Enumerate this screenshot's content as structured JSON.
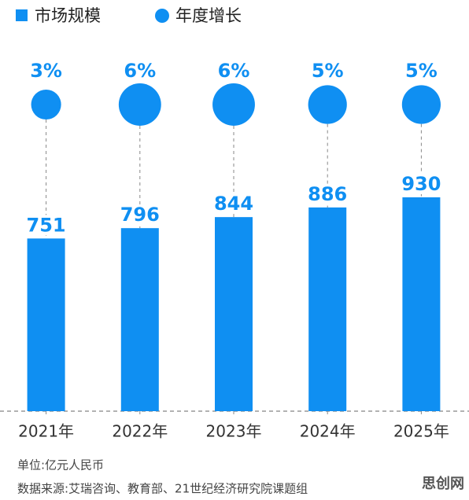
{
  "chart_data": {
    "type": "bar",
    "categories": [
      "2021年",
      "2022年",
      "2023年",
      "2024年",
      "2025年"
    ],
    "series": [
      {
        "name": "市场规模",
        "type": "bar",
        "color": "#0f8ff2",
        "values": [
          751,
          796,
          844,
          886,
          930
        ]
      },
      {
        "name": "年度增长",
        "type": "bubble",
        "color": "#0f8ff2",
        "values": [
          3,
          6,
          6,
          5,
          5
        ],
        "value_labels": [
          "3%",
          "6%",
          "6%",
          "5%",
          "5%"
        ]
      }
    ],
    "footnotes": [
      "单位:亿元人民币",
      "数据来源:艾瑞咨询、教育部、21世纪经济研究院课题组"
    ],
    "watermark": "思创网"
  }
}
